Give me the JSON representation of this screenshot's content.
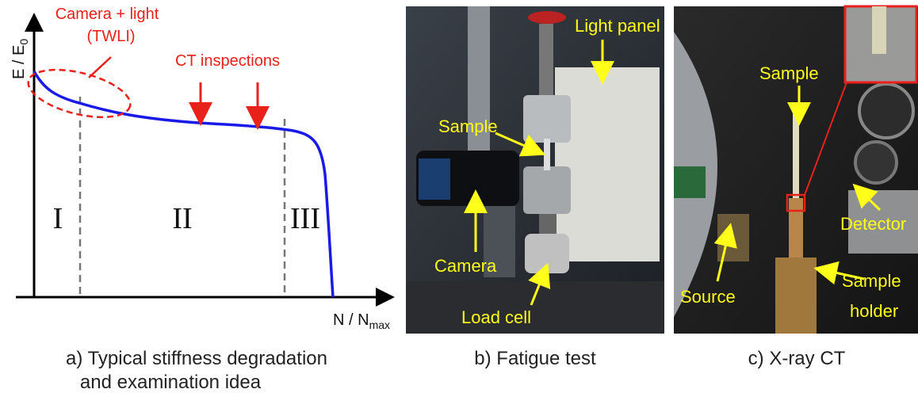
{
  "panel_a": {
    "y_axis_label": {
      "text": "E / E",
      "subscript": "0"
    },
    "x_axis_label": {
      "text": "N / N",
      "subscript": "max"
    },
    "annotations": {
      "camera_light": [
        "Camera + light",
        "(TWLI)"
      ],
      "ct_inspections": "CT inspections"
    },
    "regions": [
      "I",
      "II",
      "III"
    ],
    "caption": [
      "a) Typical stiffness degradation",
      "and examination idea"
    ]
  },
  "panel_b": {
    "labels": {
      "light_panel": "Light panel",
      "sample": "Sample",
      "camera": "Camera",
      "load_cell": "Load cell"
    },
    "caption": "b) Fatigue test"
  },
  "panel_c": {
    "labels": {
      "sample": "Sample",
      "detector": "Detector",
      "source": "Source",
      "sample_holder": [
        "Sample",
        "holder"
      ]
    },
    "caption": "c) X-ray CT"
  }
}
